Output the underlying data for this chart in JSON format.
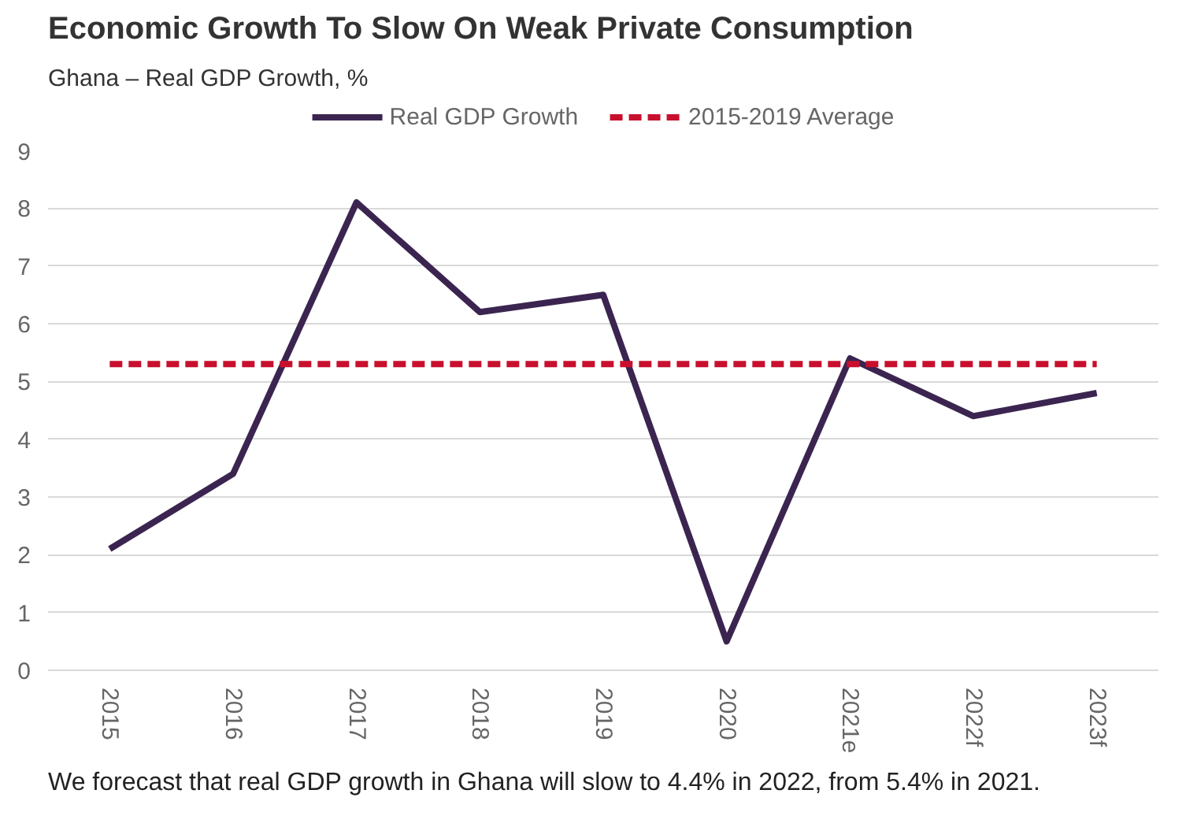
{
  "chart_data": {
    "type": "line",
    "title": "Economic Growth To Slow On Weak Private Consumption",
    "subtitle": "Ghana – Real GDP Growth, %",
    "categories": [
      "2015",
      "2016",
      "2017",
      "2018",
      "2019",
      "2020",
      "2021e",
      "2022f",
      "2023f"
    ],
    "series": [
      {
        "name": "Real GDP Growth",
        "color": "#3b2550",
        "values": [
          2.1,
          3.4,
          8.1,
          6.2,
          6.5,
          0.5,
          5.4,
          4.4,
          4.8
        ]
      },
      {
        "name": "2015-2019 Average",
        "color": "#c8102e",
        "line_style": "dashed",
        "values": [
          5.3,
          5.3,
          5.3,
          5.3,
          5.3,
          5.3,
          5.3,
          5.3,
          5.3
        ]
      }
    ],
    "ylim": [
      0,
      9
    ],
    "yticks": [
      0,
      1,
      2,
      3,
      4,
      5,
      6,
      7,
      8,
      9
    ],
    "grid": "y",
    "legend": "top",
    "marker": "none",
    "annotations": [
      "We forecast that real GDP growth in Ghana will slow to 4.4% in 2022, from 5.4% in 2021."
    ]
  }
}
